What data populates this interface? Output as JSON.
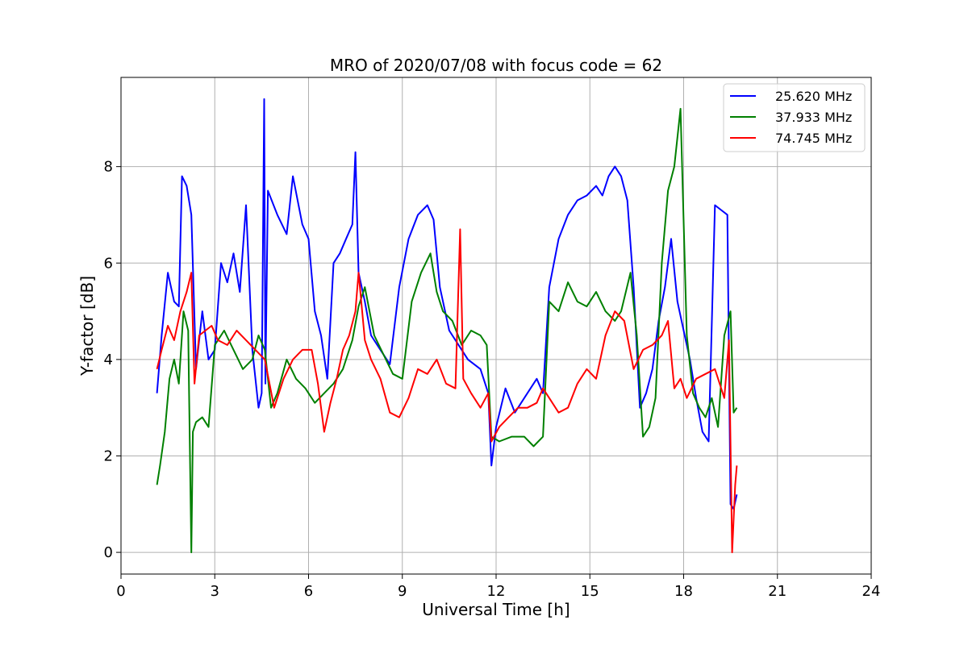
{
  "chart_data": {
    "type": "line",
    "title": "MRO of 2020/07/08 with focus code = 62",
    "xlabel": "Universal Time [h]",
    "ylabel": "Y-factor [dB]",
    "xlim": [
      0,
      24
    ],
    "ylim": [
      -0.45,
      9.85
    ],
    "xticks": [
      0,
      3,
      6,
      9,
      12,
      15,
      18,
      21,
      24
    ],
    "yticks": [
      0,
      2,
      4,
      6,
      8
    ],
    "grid": true,
    "legend_position": "top-right",
    "series": [
      {
        "name": "25.620 MHz",
        "color": "#0000ff",
        "x": [
          1.15,
          1.3,
          1.5,
          1.7,
          1.85,
          1.95,
          2.1,
          2.25,
          2.4,
          2.6,
          2.8,
          3.0,
          3.2,
          3.4,
          3.6,
          3.8,
          4.0,
          4.2,
          4.4,
          4.5,
          4.58,
          4.62,
          4.7,
          5.0,
          5.3,
          5.5,
          5.8,
          6.0,
          6.2,
          6.4,
          6.6,
          6.8,
          7.0,
          7.2,
          7.4,
          7.5,
          7.6,
          7.8,
          8.0,
          8.3,
          8.6,
          8.9,
          9.2,
          9.5,
          9.8,
          10.0,
          10.2,
          10.5,
          10.8,
          11.1,
          11.5,
          11.75,
          11.85,
          12.0,
          12.3,
          12.6,
          13.0,
          13.3,
          13.5,
          13.7,
          14.0,
          14.3,
          14.6,
          14.9,
          15.2,
          15.4,
          15.6,
          15.8,
          16.0,
          16.2,
          16.4,
          16.6,
          16.8,
          17.0,
          17.2,
          17.4,
          17.6,
          17.8,
          18.0,
          18.2,
          18.4,
          18.6,
          18.8,
          19.0,
          19.2,
          19.4,
          19.5,
          19.6,
          19.7
        ],
        "y": [
          3.3,
          4.5,
          5.8,
          5.2,
          5.1,
          7.8,
          7.6,
          7.0,
          3.8,
          5.0,
          4.0,
          4.2,
          6.0,
          5.6,
          6.2,
          5.4,
          7.2,
          4.2,
          3.0,
          3.3,
          9.4,
          3.5,
          7.5,
          7.0,
          6.6,
          7.8,
          6.8,
          6.5,
          5.0,
          4.5,
          3.6,
          6.0,
          6.2,
          6.5,
          6.8,
          8.3,
          5.8,
          5.2,
          4.5,
          4.2,
          3.9,
          5.5,
          6.5,
          7.0,
          7.2,
          6.9,
          5.5,
          4.6,
          4.3,
          4.0,
          3.8,
          3.3,
          1.8,
          2.6,
          3.4,
          2.9,
          3.3,
          3.6,
          3.3,
          5.5,
          6.5,
          7.0,
          7.3,
          7.4,
          7.6,
          7.4,
          7.8,
          8.0,
          7.8,
          7.3,
          5.5,
          3.0,
          3.3,
          3.8,
          4.8,
          5.5,
          6.5,
          5.2,
          4.6,
          4.0,
          3.2,
          2.5,
          2.3,
          7.2,
          7.1,
          7.0,
          1.0,
          0.9,
          1.2
        ]
      },
      {
        "name": "37.933 MHz",
        "color": "#008000",
        "x": [
          1.15,
          1.25,
          1.4,
          1.55,
          1.7,
          1.85,
          2.0,
          2.15,
          2.25,
          2.3,
          2.4,
          2.6,
          2.8,
          3.0,
          3.3,
          3.6,
          3.9,
          4.2,
          4.4,
          4.6,
          4.8,
          5.0,
          5.3,
          5.6,
          5.9,
          6.2,
          6.5,
          6.8,
          7.1,
          7.4,
          7.6,
          7.8,
          8.1,
          8.4,
          8.7,
          9.0,
          9.3,
          9.6,
          9.9,
          10.1,
          10.3,
          10.6,
          10.9,
          11.2,
          11.5,
          11.7,
          11.85,
          12.1,
          12.5,
          12.9,
          13.2,
          13.5,
          13.7,
          14.0,
          14.3,
          14.6,
          14.9,
          15.2,
          15.5,
          15.8,
          16.0,
          16.3,
          16.5,
          16.7,
          16.9,
          17.1,
          17.3,
          17.5,
          17.7,
          17.9,
          18.1,
          18.3,
          18.5,
          18.7,
          18.9,
          19.1,
          19.3,
          19.5,
          19.6,
          19.7
        ],
        "y": [
          1.4,
          1.8,
          2.5,
          3.6,
          4.0,
          3.5,
          5.0,
          4.6,
          0.0,
          2.5,
          2.7,
          2.8,
          2.6,
          4.3,
          4.6,
          4.2,
          3.8,
          4.0,
          4.5,
          4.2,
          3.0,
          3.3,
          4.0,
          3.6,
          3.4,
          3.1,
          3.3,
          3.5,
          3.8,
          4.4,
          5.1,
          5.5,
          4.5,
          4.1,
          3.7,
          3.6,
          5.2,
          5.8,
          6.2,
          5.4,
          5.0,
          4.8,
          4.3,
          4.6,
          4.5,
          4.3,
          2.4,
          2.3,
          2.4,
          2.4,
          2.2,
          2.4,
          5.2,
          5.0,
          5.6,
          5.2,
          5.1,
          5.4,
          5.0,
          4.8,
          5.0,
          5.8,
          4.5,
          2.4,
          2.6,
          3.2,
          6.0,
          7.5,
          8.0,
          9.2,
          4.5,
          3.3,
          3.0,
          2.8,
          3.2,
          2.6,
          4.5,
          5.0,
          2.9,
          3.0
        ]
      },
      {
        "name": "74.745 MHz",
        "color": "#ff0000",
        "x": [
          1.15,
          1.3,
          1.5,
          1.7,
          1.9,
          2.1,
          2.25,
          2.35,
          2.5,
          2.7,
          2.9,
          3.1,
          3.4,
          3.7,
          4.0,
          4.3,
          4.6,
          4.9,
          5.2,
          5.5,
          5.8,
          6.1,
          6.3,
          6.5,
          6.7,
          6.9,
          7.1,
          7.3,
          7.5,
          7.6,
          7.8,
          8.0,
          8.3,
          8.6,
          8.9,
          9.2,
          9.5,
          9.8,
          10.1,
          10.4,
          10.7,
          10.85,
          10.95,
          11.2,
          11.5,
          11.75,
          11.85,
          12.1,
          12.4,
          12.7,
          13.0,
          13.3,
          13.5,
          13.7,
          14.0,
          14.3,
          14.6,
          14.9,
          15.2,
          15.5,
          15.8,
          16.1,
          16.4,
          16.7,
          17.0,
          17.3,
          17.5,
          17.7,
          17.9,
          18.1,
          18.4,
          18.7,
          19.0,
          19.3,
          19.45,
          19.55,
          19.65,
          19.7
        ],
        "y": [
          3.8,
          4.2,
          4.7,
          4.4,
          5.0,
          5.4,
          5.8,
          3.5,
          4.5,
          4.6,
          4.7,
          4.4,
          4.3,
          4.6,
          4.4,
          4.2,
          4.0,
          3.0,
          3.6,
          4.0,
          4.2,
          4.2,
          3.5,
          2.5,
          3.1,
          3.6,
          4.2,
          4.5,
          5.0,
          5.8,
          4.4,
          4.0,
          3.6,
          2.9,
          2.8,
          3.2,
          3.8,
          3.7,
          4.0,
          3.5,
          3.4,
          6.7,
          3.6,
          3.3,
          3.0,
          3.3,
          2.3,
          2.6,
          2.8,
          3.0,
          3.0,
          3.1,
          3.4,
          3.2,
          2.9,
          3.0,
          3.5,
          3.8,
          3.6,
          4.5,
          5.0,
          4.8,
          3.8,
          4.2,
          4.3,
          4.5,
          4.8,
          3.4,
          3.6,
          3.2,
          3.6,
          3.7,
          3.8,
          3.2,
          4.4,
          0.0,
          1.4,
          1.8
        ]
      }
    ]
  }
}
